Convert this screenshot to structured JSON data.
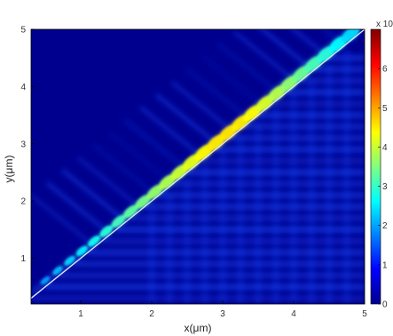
{
  "chart_data": {
    "type": "heatmap",
    "title": "",
    "xlabel": "x(μm)",
    "ylabel": "y(μm)",
    "xlim": [
      0.3,
      5
    ],
    "ylim": [
      0.2,
      5
    ],
    "x_ticks": [
      "1",
      "2",
      "3",
      "4",
      "5"
    ],
    "y_ticks": [
      "1",
      "2",
      "3",
      "4",
      "5"
    ],
    "colorbar": {
      "colormap": "jet",
      "range": [
        0,
        7
      ],
      "exponent_label": "x 10",
      "ticks": [
        "0",
        "1",
        "2",
        "3",
        "4",
        "5",
        "6"
      ]
    },
    "features": {
      "diagonal_line": "y = x",
      "bright_fringes_along_diagonal": true,
      "horizontal_fringes_below_diagonal": true,
      "peak_intensity_region": [
        2.6,
        3.6
      ]
    },
    "grid": false,
    "colors": {
      "background_field": "#00008f",
      "diagonal_line": "#e8e8ff",
      "peak": "#ffff00"
    }
  }
}
